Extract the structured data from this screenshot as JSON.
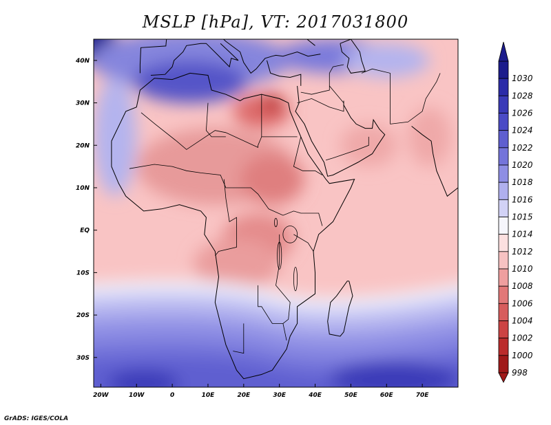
{
  "title": "MSLP [hPa], VT: 2017031800",
  "credit": "GrADS: IGES/COLA",
  "map": {
    "variable": "Mean sea level pressure",
    "units": "hPa",
    "valid_time": "2017031800",
    "lon_range": [
      -22,
      80
    ],
    "lat_range": [
      -37,
      45
    ],
    "x_ticks": [
      {
        "lon": -20,
        "label": "20W"
      },
      {
        "lon": -10,
        "label": "10W"
      },
      {
        "lon": 0,
        "label": "0"
      },
      {
        "lon": 10,
        "label": "10E"
      },
      {
        "lon": 20,
        "label": "20E"
      },
      {
        "lon": 30,
        "label": "30E"
      },
      {
        "lon": 40,
        "label": "40E"
      },
      {
        "lon": 50,
        "label": "50E"
      },
      {
        "lon": 60,
        "label": "60E"
      },
      {
        "lon": 70,
        "label": "70E"
      }
    ],
    "y_ticks": [
      {
        "lat": 40,
        "label": "40N"
      },
      {
        "lat": 30,
        "label": "30N"
      },
      {
        "lat": 20,
        "label": "20N"
      },
      {
        "lat": 10,
        "label": "10N"
      },
      {
        "lat": 0,
        "label": "EQ"
      },
      {
        "lat": -10,
        "label": "10S"
      },
      {
        "lat": -20,
        "label": "20S"
      },
      {
        "lat": -30,
        "label": "30S"
      }
    ]
  },
  "colorbar": {
    "levels": [
      "1030",
      "1028",
      "1026",
      "1024",
      "1022",
      "1020",
      "1018",
      "1016",
      "1015",
      "1014",
      "1012",
      "1010",
      "1008",
      "1006",
      "1004",
      "1002",
      "1000",
      "998"
    ],
    "colors": [
      "#1c1c8c",
      "#2b2ba8",
      "#3a3ab8",
      "#4b4bc6",
      "#5e5ed0",
      "#7474da",
      "#8e8ee4",
      "#b0b0ee",
      "#d2d2f6",
      "#f6f6fc",
      "#fce0e0",
      "#f7c2c2",
      "#ef9f9f",
      "#e27878",
      "#d75c5c",
      "#cc4444",
      "#bb2c2c",
      "#a01a1a"
    ]
  },
  "fields": {
    "background": "#f9c4c4",
    "blobs": [
      {
        "lon": -22,
        "lat": 45,
        "rx": 6,
        "ry": 6,
        "color": "#1c1c8c"
      },
      {
        "lon": 5,
        "lat": 40,
        "rx": 28,
        "ry": 7,
        "color": "#8585dd"
      },
      {
        "lon": 5,
        "lat": 35,
        "rx": 16,
        "ry": 5,
        "color": "#5555c8"
      },
      {
        "lon": 45,
        "lat": 41,
        "rx": 16,
        "ry": 4,
        "color": "#7a7adb"
      },
      {
        "lon": 60,
        "lat": 40,
        "rx": 12,
        "ry": 4,
        "color": "#b4b4ee"
      },
      {
        "lon": -16,
        "lat": 22,
        "rx": 6,
        "ry": 14,
        "color": "#b4b4ee"
      },
      {
        "lon": 25,
        "lat": 28,
        "rx": 8,
        "ry": 4,
        "color": "#dd6b6b"
      },
      {
        "lon": 28,
        "lat": 30,
        "rx": 3,
        "ry": 2,
        "color": "#b82a2a"
      },
      {
        "lon": 12,
        "lat": 15,
        "rx": 22,
        "ry": 9,
        "color": "#e79a9a"
      },
      {
        "lon": 28,
        "lat": 12,
        "rx": 9,
        "ry": 6,
        "color": "#df7f7f"
      },
      {
        "lon": 24,
        "lat": -2,
        "rx": 10,
        "ry": 6,
        "color": "#e48b8b"
      },
      {
        "lon": 18,
        "lat": -8,
        "rx": 12,
        "ry": 6,
        "color": "#ea9d9d"
      },
      {
        "lon": 55,
        "lat": 20,
        "rx": 8,
        "ry": 5,
        "color": "#efa9a9"
      },
      {
        "lon": 72,
        "lat": 22,
        "rx": 6,
        "ry": 7,
        "color": "#efa9a9"
      },
      {
        "lon": 30,
        "lat": -30,
        "rx": 3,
        "ry": 2,
        "color": "#ffffff"
      }
    ],
    "south_bands": [
      {
        "lat": -13,
        "color": "#f4f4fc"
      },
      {
        "lat": -15,
        "color": "#d2d2f6"
      },
      {
        "lat": -18,
        "color": "#b0b0ee"
      },
      {
        "lat": -22,
        "color": "#8e8ee4"
      },
      {
        "lat": -27,
        "color": "#7474da"
      },
      {
        "lat": -31,
        "color": "#5e5ed0"
      }
    ],
    "south_lows": [
      {
        "lon": -8,
        "lat": -36,
        "rx": 10,
        "ry": 3,
        "color": "#3a3ab8"
      },
      {
        "lon": 62,
        "lat": -35,
        "rx": 18,
        "ry": 4,
        "color": "#3a3ab8"
      }
    ]
  }
}
